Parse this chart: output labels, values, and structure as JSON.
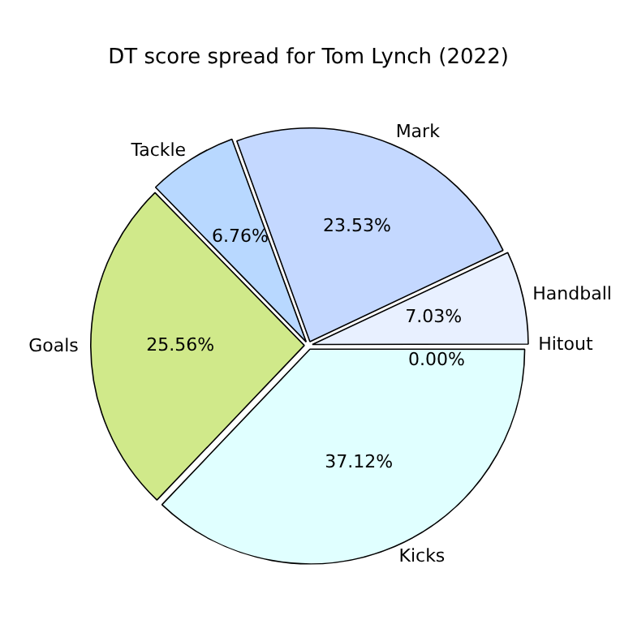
{
  "chart_data": {
    "type": "pie",
    "title": "DT score spread for Tom Lynch (2022)",
    "categories": [
      "Kicks",
      "Goals",
      "Tackle",
      "Mark",
      "Handball",
      "Hitout"
    ],
    "values": [
      37.12,
      25.56,
      6.76,
      23.53,
      7.03,
      0
    ],
    "colors": [
      "#e0ffff",
      "#d0e98a",
      "#b8d8ff",
      "#c4d8ff",
      "#e8f0ff",
      "#f0f8ff"
    ],
    "value_labels": [
      "37.12%",
      "25.56%",
      "6.76%",
      "23.53%",
      "7.03%",
      "0.00%"
    ],
    "legend": false
  }
}
